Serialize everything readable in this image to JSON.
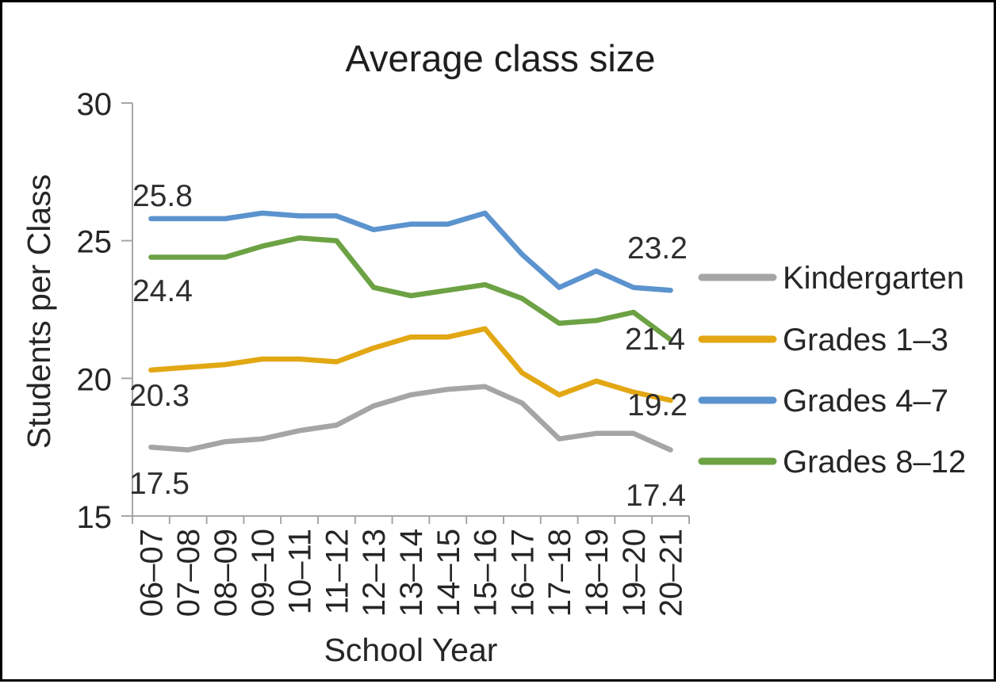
{
  "chart_data": {
    "type": "line",
    "title": "Average class size",
    "xlabel": "School Year",
    "ylabel": "Students per Class",
    "ylim": [
      15,
      30
    ],
    "yticks": [
      30,
      25,
      20,
      15
    ],
    "grid": false,
    "legend_position": "right",
    "axis_color": "#A6A6A6",
    "categories": [
      "06–07",
      "07–08",
      "08–09",
      "09–10",
      "10–11",
      "11–12",
      "12–13",
      "13–14",
      "14–15",
      "15–16",
      "16–17",
      "17–18",
      "18–19",
      "19–20",
      "20–21"
    ],
    "series": [
      {
        "name": "Kindergarten",
        "color": "#A5A5A5",
        "values": [
          17.5,
          17.4,
          17.7,
          17.8,
          18.1,
          18.3,
          19.0,
          19.4,
          19.6,
          19.7,
          19.1,
          17.8,
          18.0,
          18.0,
          17.4
        ],
        "label_start": "17.5",
        "label_end": "17.4"
      },
      {
        "name": "Grades 1–3",
        "color": "#E2A713",
        "values": [
          20.3,
          20.4,
          20.5,
          20.7,
          20.7,
          20.6,
          21.1,
          21.5,
          21.5,
          21.8,
          20.2,
          19.4,
          19.9,
          19.5,
          19.2
        ],
        "label_start": "20.3",
        "label_end": "19.2"
      },
      {
        "name": "Grades 4–7",
        "color": "#5B93CE",
        "values": [
          25.8,
          25.8,
          25.8,
          26.0,
          25.9,
          25.9,
          25.4,
          25.6,
          25.6,
          26.0,
          24.5,
          23.3,
          23.9,
          23.3,
          23.2
        ],
        "label_start": "25.8",
        "label_end": "23.2"
      },
      {
        "name": "Grades 8–12",
        "color": "#6CA244",
        "values": [
          24.4,
          24.4,
          24.4,
          24.8,
          25.1,
          25.0,
          23.3,
          23.0,
          23.2,
          23.4,
          22.9,
          22.0,
          22.1,
          22.4,
          21.4
        ],
        "label_start": "24.4",
        "label_end": "21.4"
      }
    ]
  }
}
